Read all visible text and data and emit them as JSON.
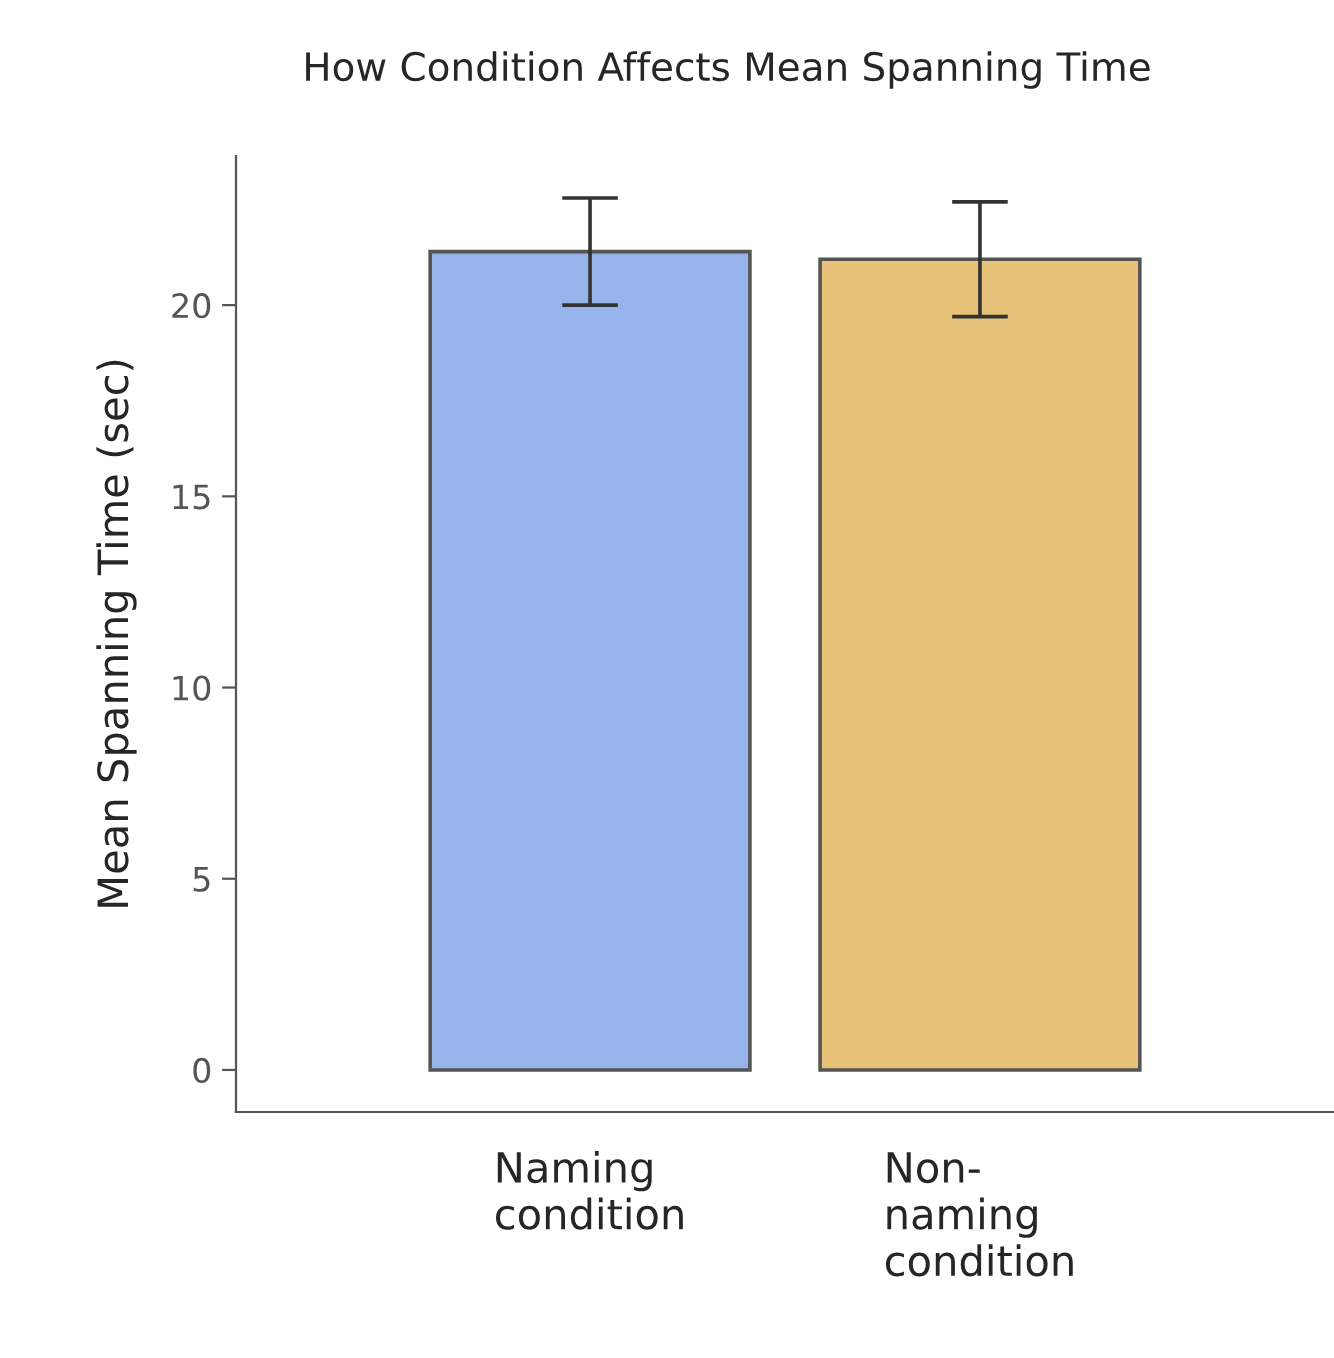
{
  "chart_data": {
    "type": "bar",
    "title": "How Condition Affects Mean Spanning Time",
    "ylabel": "Mean Spanning Time (sec)",
    "categories": [
      "Naming\ncondition",
      "Non-\nnaming\ncondition"
    ],
    "values": [
      21.4,
      21.2
    ],
    "errors": [
      1.4,
      1.5
    ],
    "colors": [
      "#97b4ea",
      "#e9c27a"
    ],
    "ylim": [
      -1.1,
      23.9
    ],
    "yticks": [
      0,
      5,
      10,
      15,
      20
    ],
    "grid": false
  }
}
